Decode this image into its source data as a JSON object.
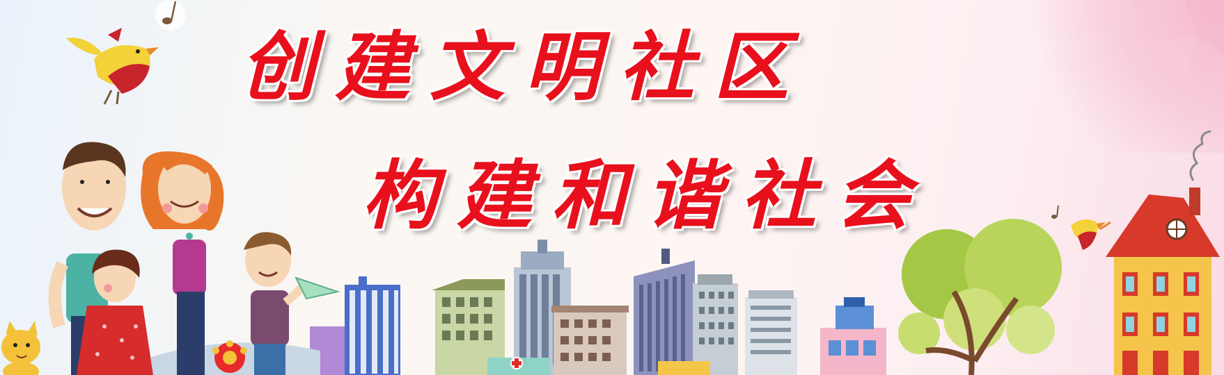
{
  "banner": {
    "slogan_line_1": "创建文明社区",
    "slogan_line_2": "构建和谐社会"
  },
  "colors": {
    "slogan_text": "#e8101c",
    "slogan_outline": "#ffffff",
    "background_left": "#eaf3fb",
    "background_right": "#f9dbe6"
  },
  "illustration": {
    "elements": [
      "family-illustration",
      "cartoon-bird-icon",
      "city-skyline",
      "tree",
      "cartoon-house",
      "paper-plane-icon",
      "music-note-icon",
      "cat-icon",
      "flower-icon",
      "hospital-cross-icon"
    ]
  }
}
